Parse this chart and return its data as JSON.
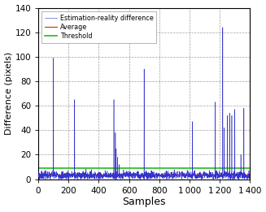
{
  "xlabel": "Samples",
  "ylabel": "Difference (pixels)",
  "xlim": [
    0,
    1400
  ],
  "ylim": [
    0,
    140
  ],
  "xticks": [
    0,
    200,
    400,
    600,
    800,
    1000,
    1200,
    1400
  ],
  "yticks": [
    0,
    20,
    40,
    60,
    80,
    100,
    120,
    140
  ],
  "average_value": 3.5,
  "threshold_value": 9.0,
  "blue_color": "#3333cc",
  "red_color": "#dd2222",
  "green_color": "#22bb22",
  "legend_labels": [
    "Estimation-reality difference",
    "Average",
    "Threshold"
  ],
  "noise_base": 3.2,
  "noise_std": 1.8,
  "spikes": [
    [
      100,
      99
    ],
    [
      240,
      65
    ],
    [
      500,
      65
    ],
    [
      510,
      38
    ],
    [
      515,
      25
    ],
    [
      525,
      18
    ],
    [
      535,
      12
    ],
    [
      700,
      90
    ],
    [
      1020,
      47
    ],
    [
      1170,
      63
    ],
    [
      1220,
      124
    ],
    [
      1230,
      42
    ],
    [
      1250,
      52
    ],
    [
      1265,
      54
    ],
    [
      1280,
      52
    ],
    [
      1300,
      57
    ],
    [
      1340,
      20
    ],
    [
      1360,
      58
    ]
  ],
  "seed": 7,
  "n_samples": 1400,
  "figwidth": 3.27,
  "figheight": 2.61,
  "dpi": 100
}
